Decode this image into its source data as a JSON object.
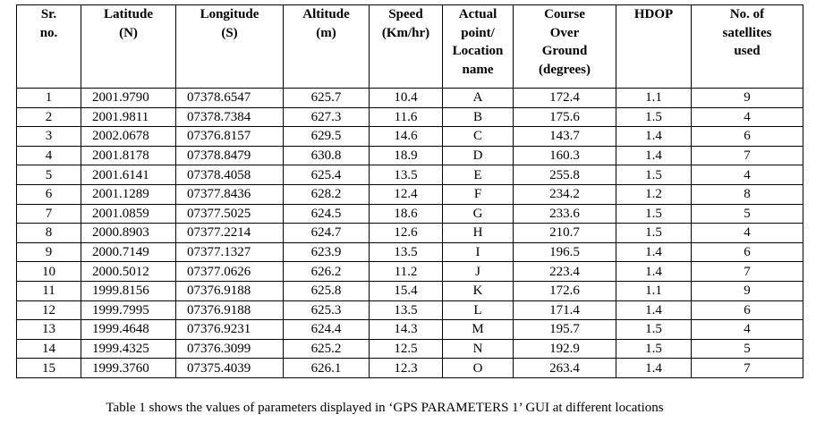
{
  "table": {
    "header": [
      [
        "Sr.",
        "no."
      ],
      [
        "Latitude",
        "(N)"
      ],
      [
        "Longitude",
        "(S)"
      ],
      [
        "Altitude",
        "(m)"
      ],
      [
        "Speed",
        "(Km/hr)"
      ],
      [
        "Actual",
        "point/",
        "Location",
        "name"
      ],
      [
        "Course",
        "Over",
        "Ground",
        "(degrees)"
      ],
      [
        "HDOP"
      ],
      [
        "No. of",
        "satellites",
        "used"
      ]
    ],
    "rows": [
      [
        "1",
        "2001.9790",
        "07378.6547",
        "625.7",
        "10.4",
        "A",
        "172.4",
        "1.1",
        "9"
      ],
      [
        "2",
        "2001.9811",
        "07378.7384",
        "627.3",
        "11.6",
        "B",
        "175.6",
        "1.5",
        "4"
      ],
      [
        "3",
        "2002.0678",
        "07376.8157",
        "629.5",
        "14.6",
        "C",
        "143.7",
        "1.4",
        "6"
      ],
      [
        "4",
        "2001.8178",
        "07378.8479",
        "630.8",
        "18.9",
        "D",
        "160.3",
        "1.4",
        "7"
      ],
      [
        "5",
        "2001.6141",
        "07378.4058",
        "625.4",
        "13.5",
        "E",
        "255.8",
        "1.5",
        "4"
      ],
      [
        "6",
        "2001.1289",
        "07377.8436",
        "628.2",
        "12.4",
        "F",
        "234.2",
        "1.2",
        "8"
      ],
      [
        "7",
        "2001.0859",
        "07377.5025",
        "624.5",
        "18.6",
        "G",
        "233.6",
        "1.5",
        "5"
      ],
      [
        "8",
        "2000.8903",
        "07377.2214",
        "624.7",
        "12.6",
        "H",
        "210.7",
        "1.5",
        "4"
      ],
      [
        "9",
        "2000.7149",
        "07377.1327",
        "623.9",
        "13.5",
        "I",
        "196.5",
        "1.4",
        "6"
      ],
      [
        "10",
        "2000.5012",
        "07377.0626",
        "626.2",
        "11.2",
        "J",
        "223.4",
        "1.4",
        "7"
      ],
      [
        "11",
        "1999.8156",
        "07376.9188",
        "625.8",
        "15.4",
        "K",
        "172.6",
        "1.1",
        "9"
      ],
      [
        "12",
        "1999.7995",
        "07376.9188",
        "625.3",
        "13.5",
        "L",
        "171.4",
        "1.4",
        "6"
      ],
      [
        "13",
        "1999.4648",
        "07376.9231",
        "624.4",
        "14.3",
        "M",
        "195.7",
        "1.5",
        "4"
      ],
      [
        "14",
        "1999.4325",
        "07376.3099",
        "625.2",
        "12.5",
        "N",
        "192.9",
        "1.5",
        "5"
      ],
      [
        "15",
        "1999.3760",
        "07375.4039",
        "626.1",
        "12.3",
        "O",
        "263.4",
        "1.4",
        "7"
      ]
    ]
  },
  "caption": "Table 1 shows the values of parameters displayed in ‘GPS PARAMETERS 1’ GUI at different locations"
}
